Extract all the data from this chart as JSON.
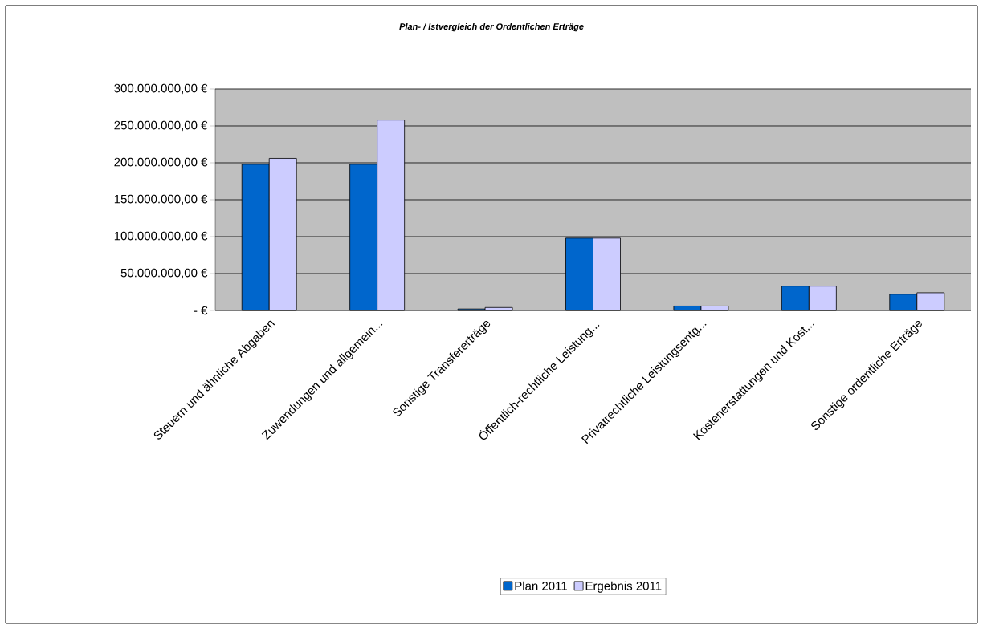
{
  "chart_data": {
    "type": "bar",
    "title": "Plan- / Istvergleich der Ordentlichen Erträge",
    "categories": [
      "Steuern und ähnliche Abgaben",
      "Zuwendungen und allgemein...",
      "Sonstige Transfererträge",
      "Öffentlich-rechtliche Leistung...",
      "Privatrechtliche Leistungsentg...",
      "Kostenerstattungen und Kost...",
      "Sonstige ordentliche Erträge"
    ],
    "series": [
      {
        "name": "Plan 2011",
        "color": "#0066cc",
        "values": [
          198000000,
          198000000,
          2000000,
          98000000,
          6000000,
          33000000,
          22000000
        ]
      },
      {
        "name": "Ergebnis 2011",
        "color": "#ccccff",
        "values": [
          206000000,
          258000000,
          4000000,
          98000000,
          6000000,
          33000000,
          24000000
        ]
      }
    ],
    "ylim": [
      0,
      300000000
    ],
    "yticks": [
      {
        "value": 0,
        "label": "-   €"
      },
      {
        "value": 50000000,
        "label": "50.000.000,00 €"
      },
      {
        "value": 100000000,
        "label": "100.000.000,00 €"
      },
      {
        "value": 150000000,
        "label": "150.000.000,00 €"
      },
      {
        "value": 200000000,
        "label": "200.000.000,00 €"
      },
      {
        "value": 250000000,
        "label": "250.000.000,00 €"
      },
      {
        "value": 300000000,
        "label": "300.000.000,00 €"
      }
    ],
    "grid": "y",
    "legend": "bottom"
  }
}
